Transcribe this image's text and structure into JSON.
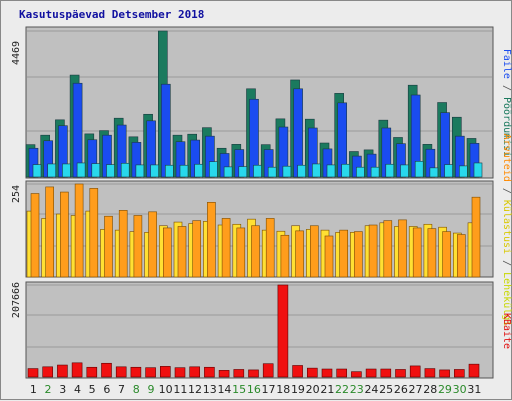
{
  "chart_data": {
    "type": "bar",
    "title": "Kasutuspäevad Detsember 2018",
    "categories": [
      "1",
      "2",
      "3",
      "4",
      "5",
      "6",
      "7",
      "8",
      "9",
      "10",
      "11",
      "12",
      "13",
      "14",
      "15",
      "16",
      "17",
      "18",
      "19",
      "20",
      "21",
      "22",
      "23",
      "24",
      "25",
      "26",
      "27",
      "28",
      "29",
      "30",
      "31"
    ],
    "weekend_categories": [
      "2",
      "8",
      "9",
      "15",
      "16",
      "22",
      "23",
      "29",
      "30"
    ],
    "panels": [
      {
        "name": "top",
        "axis_max_label": "4469",
        "ylim": [
          0,
          4469
        ],
        "series": [
          {
            "name": "Pöördumisi",
            "color": "#1b7a5e",
            "values": [
              990,
              1280,
              1750,
              3120,
              1320,
              1420,
              1800,
              1230,
              1920,
              4469,
              1280,
              1310,
              1510,
              880,
              1000,
              2700,
              990,
              1780,
              2970,
              1770,
              1040,
              2560,
              780,
              830,
              1740,
              1210,
              2810,
              1000,
              2280,
              1830,
              1180
            ]
          },
          {
            "name": "Faile",
            "color": "#1a4cf0",
            "values": [
              880,
              1110,
              1570,
              2870,
              1140,
              1280,
              1590,
              1060,
              1720,
              2840,
              1080,
              1130,
              1250,
              720,
              840,
              2380,
              840,
              1530,
              2700,
              1500,
              860,
              2270,
              640,
              700,
              1500,
              1020,
              2510,
              850,
              1970,
              1250,
              1030
            ]
          },
          {
            "name": "Lehekülgi",
            "color": "#28d8ec",
            "values": [
              380,
              400,
              400,
              430,
              410,
              380,
              420,
              370,
              370,
              360,
              360,
              390,
              470,
              310,
              320,
              360,
              300,
              330,
              360,
              400,
              370,
              390,
              300,
              300,
              390,
              370,
              480,
              280,
              380,
              340,
              430
            ]
          }
        ]
      },
      {
        "name": "mid",
        "axis_max_label": "254",
        "ylim": [
          0,
          254
        ],
        "series": [
          {
            "name": "Külastusi",
            "color": "#ffe033",
            "values": [
              180,
              160,
              172,
              168,
              180,
              130,
              128,
              124,
              122,
              140,
              150,
              146,
              152,
              142,
              144,
              158,
              128,
              125,
              140,
              130,
              128,
              122,
              122,
              140,
              148,
              138,
              138,
              144,
              136,
              120,
              148
            ]
          },
          {
            "name": "Arvuteid",
            "color": "#ff9d1c",
            "values": [
              228,
              246,
              232,
              254,
              242,
              166,
              182,
              168,
              178,
              134,
              138,
              154,
              204,
              160,
              134,
              140,
              160,
              114,
              126,
              140,
              112,
              128,
              124,
              142,
              154,
              156,
              134,
              132,
              124,
              116,
              218
            ]
          }
        ]
      },
      {
        "name": "bottom",
        "axis_max_label": "207666",
        "ylim": [
          0,
          207666
        ],
        "series": [
          {
            "name": "KBaite",
            "color": "#f01010",
            "values": [
              19000,
              23000,
              27000,
              32000,
              22000,
              31000,
              23000,
              22000,
              21000,
              24000,
              21000,
              23000,
              22000,
              15000,
              17000,
              16000,
              30000,
              207666,
              26000,
              20000,
              18000,
              18000,
              12000,
              18000,
              18000,
              17000,
              25000,
              19000,
              16000,
              17000,
              29000
            ]
          }
        ]
      }
    ],
    "legend_right": [
      {
        "label": "Pöördumisi",
        "color": "#1b7a5e"
      },
      {
        "label": "Faile",
        "color": "#1a4cf0"
      },
      {
        "label": "Lehekülgi",
        "color": "#c8d800"
      },
      {
        "label": "Külastusi",
        "color": "#d8c800"
      },
      {
        "label": "Arvuteid",
        "color": "#ff8a00"
      },
      {
        "label": "KBaite",
        "color": "#e01010"
      }
    ],
    "legend_separator": "/",
    "grid": true,
    "colors": {
      "plot_bg": "#c0c0c0",
      "grid": "#9a9a9a",
      "title": "#1010a0",
      "axis_text": "#222222",
      "weekday": "#222222",
      "weekend": "#2a8a2a"
    }
  }
}
